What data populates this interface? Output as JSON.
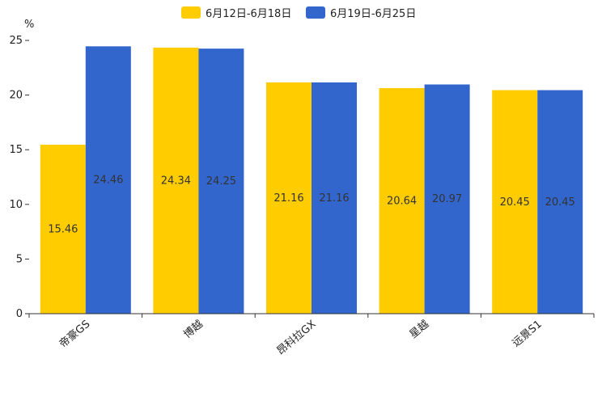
{
  "chart_data": {
    "type": "bar",
    "title": "",
    "ylabel": "%",
    "xlabel": "",
    "ylim": [
      0,
      25
    ],
    "yticks": [
      0,
      5,
      10,
      15,
      20,
      25
    ],
    "categories": [
      "帝豪GS",
      "博越",
      "昂科拉GX",
      "星越",
      "远景S1"
    ],
    "series": [
      {
        "name": "6月12日-6月18日",
        "color": "#FFCC00",
        "values": [
          15.46,
          24.34,
          21.16,
          20.64,
          20.45
        ]
      },
      {
        "name": "6月19日-6月25日",
        "color": "#3366CC",
        "values": [
          24.46,
          24.25,
          21.16,
          20.97,
          20.45
        ]
      }
    ],
    "legend_position": "top-center",
    "grid": false
  }
}
